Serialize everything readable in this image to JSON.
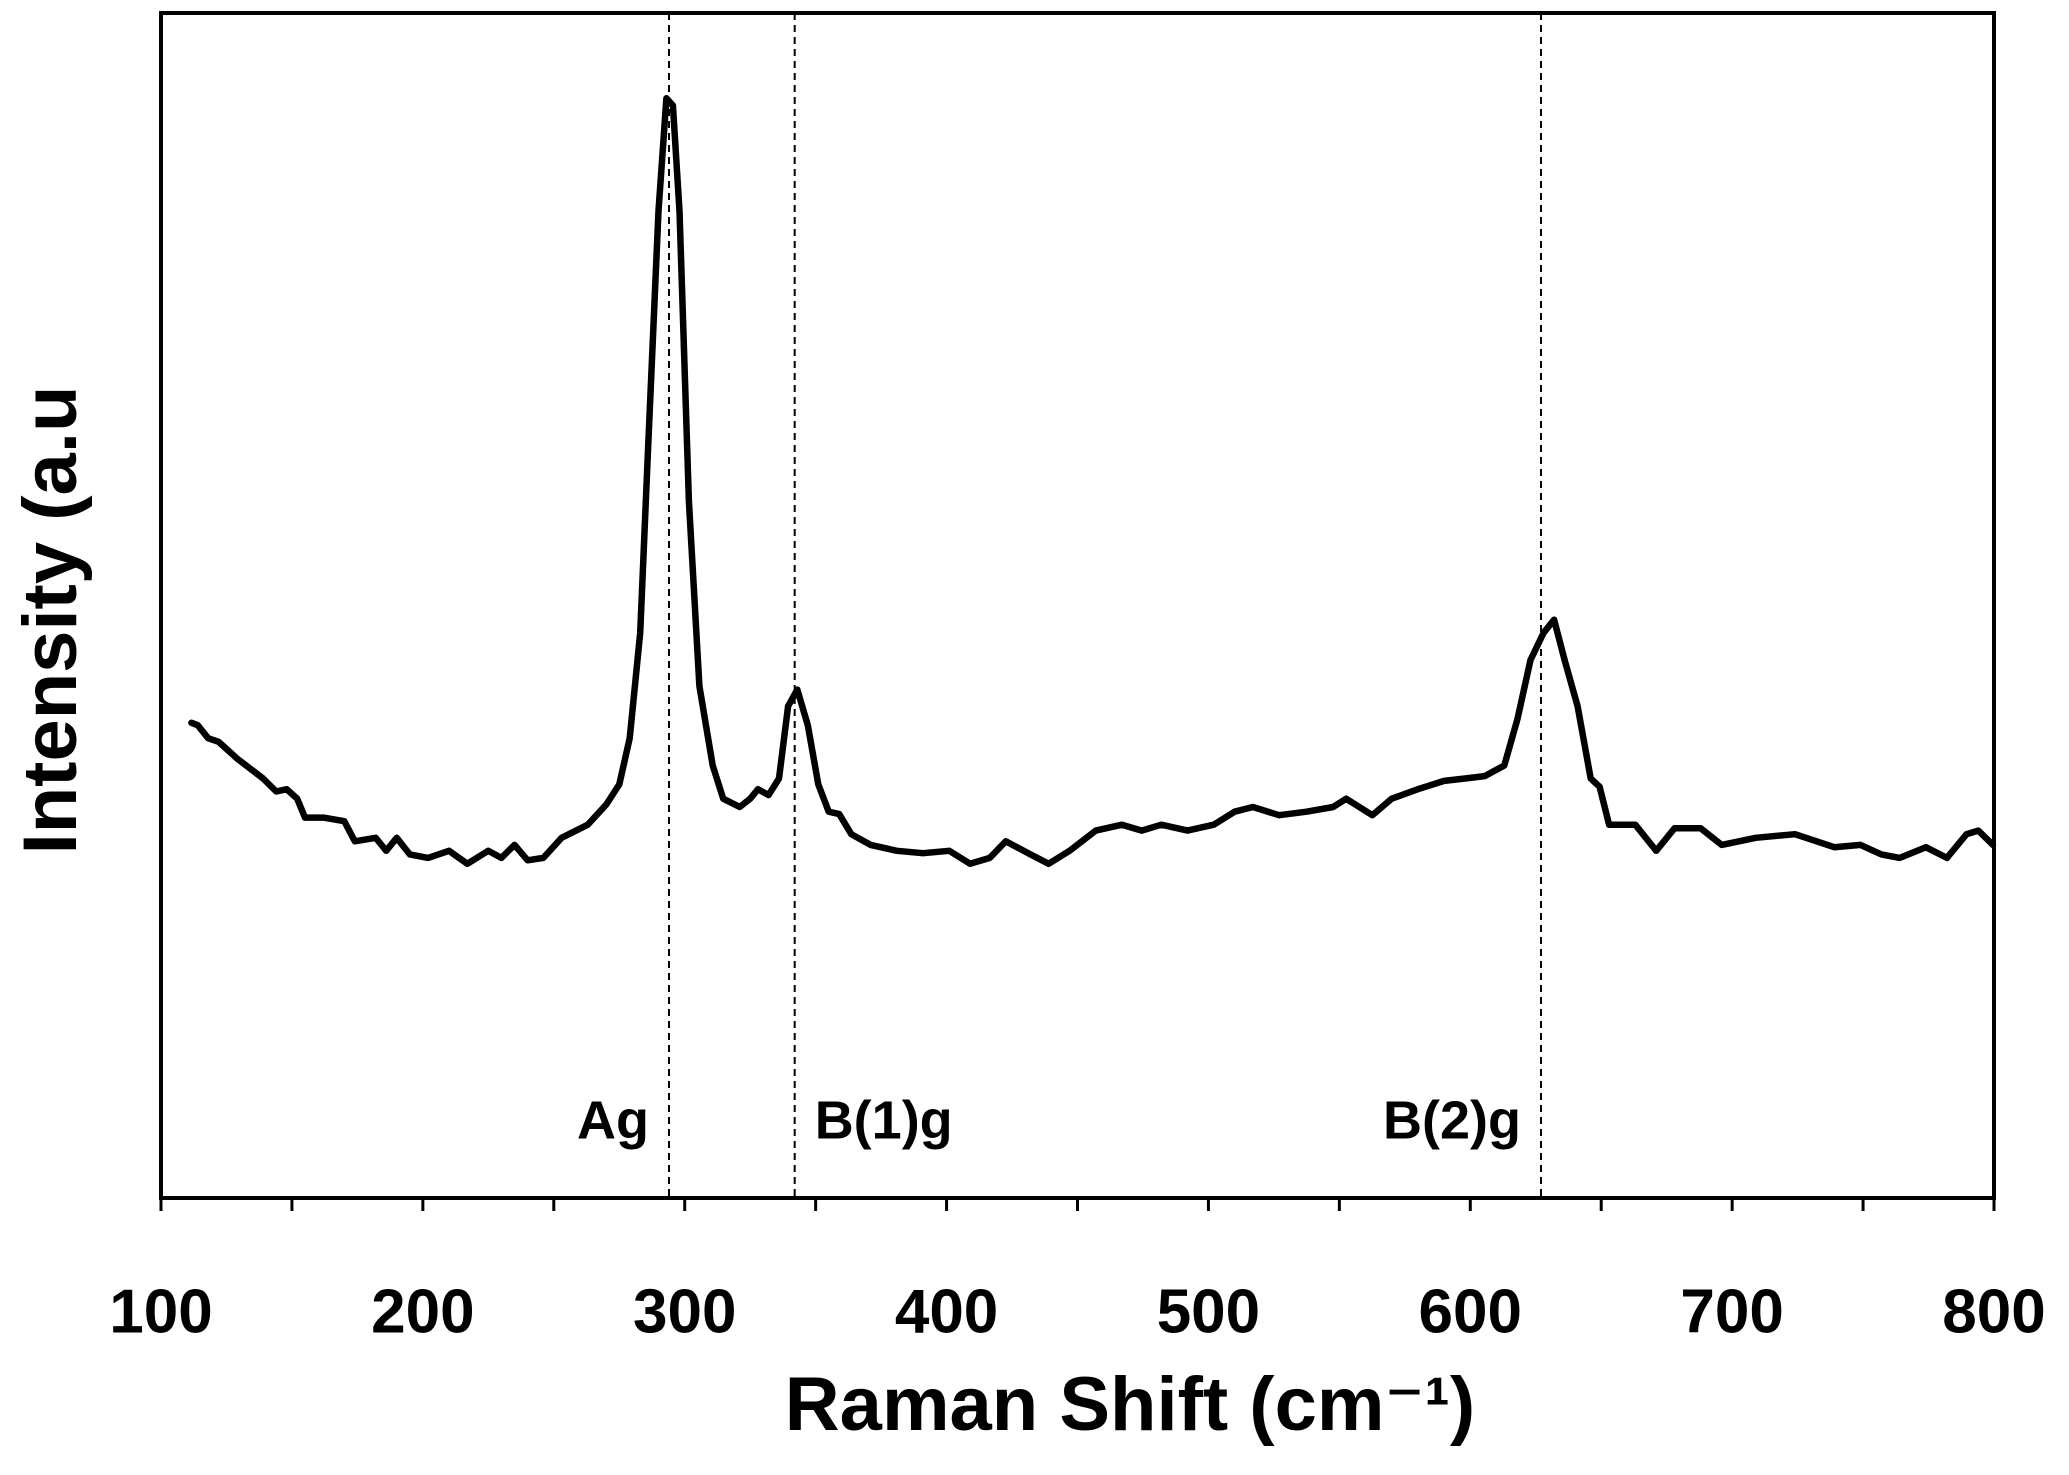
{
  "chart_data": {
    "type": "line",
    "xlabel": "Raman Shift (cm⁻¹)",
    "ylabel": "Intensity (a.u",
    "xlim": [
      100,
      800
    ],
    "ylim": [
      0,
      100
    ],
    "xticks": [
      100,
      200,
      300,
      400,
      500,
      600,
      700,
      800
    ],
    "xminorticks": [
      150,
      250,
      350,
      450,
      550,
      650,
      750
    ],
    "annotations": [
      {
        "text": "Ag",
        "x": 294
      },
      {
        "text": "B(1)g",
        "x": 342
      },
      {
        "text": "B(2)g",
        "x": 627
      }
    ],
    "series": [
      {
        "color": "#000000",
        "x": [
          111.6,
          114,
          118,
          122,
          129,
          139,
          144,
          148,
          152,
          155,
          162,
          170,
          174,
          182,
          186,
          190,
          195,
          202,
          210,
          217,
          225,
          230,
          235,
          240,
          246,
          253,
          263,
          270,
          275,
          279,
          283,
          286,
          290,
          293,
          295.5,
          298,
          301.6,
          305.6,
          310.7,
          314.7,
          321,
          325,
          328,
          332,
          336,
          339.5,
          343,
          347,
          351,
          355,
          359,
          363.6,
          371,
          381,
          391,
          401,
          409,
          416.5,
          422.6,
          432,
          439,
          447,
          457,
          467,
          474.5,
          482,
          492,
          502,
          510,
          517,
          527,
          537.5,
          547.6,
          552.6,
          562.6,
          570,
          580,
          590,
          598,
          605.5,
          613,
          618,
          623,
          628,
          632,
          636,
          641,
          646,
          649.4,
          653,
          663,
          671,
          678,
          688,
          696,
          709,
          724,
          739,
          749,
          757,
          764,
          774,
          782,
          789.5,
          794,
          799.6
        ],
        "values": [
          40.1,
          39.9,
          38.8,
          38.5,
          37.1,
          35.4,
          34.3,
          34.5,
          33.7,
          32.1,
          32.1,
          31.8,
          30.1,
          30.4,
          29.3,
          30.4,
          29.0,
          28.7,
          29.3,
          28.2,
          29.3,
          28.7,
          29.8,
          28.5,
          28.7,
          30.4,
          31.5,
          33.2,
          34.9,
          38.8,
          47.7,
          63.3,
          83.3,
          92.8,
          92.2,
          83.3,
          58.8,
          43.2,
          36.5,
          33.7,
          33.0,
          33.7,
          34.5,
          34.0,
          35.4,
          41.5,
          42.9,
          39.9,
          34.9,
          32.6,
          32.4,
          30.7,
          29.8,
          29.3,
          29.1,
          29.3,
          28.2,
          28.7,
          30.1,
          29.0,
          28.2,
          29.3,
          31.0,
          31.5,
          31.0,
          31.5,
          31.0,
          31.5,
          32.6,
          33.0,
          32.3,
          32.6,
          33.0,
          33.7,
          32.3,
          33.7,
          34.5,
          35.2,
          35.4,
          35.6,
          36.5,
          40.4,
          45.4,
          47.7,
          48.8,
          45.4,
          41.5,
          35.4,
          34.7,
          31.5,
          31.5,
          29.3,
          31.2,
          31.2,
          29.8,
          30.4,
          30.7,
          29.6,
          29.8,
          29.0,
          28.7,
          29.6,
          28.7,
          30.7,
          31.0,
          29.8
        ]
      }
    ]
  }
}
